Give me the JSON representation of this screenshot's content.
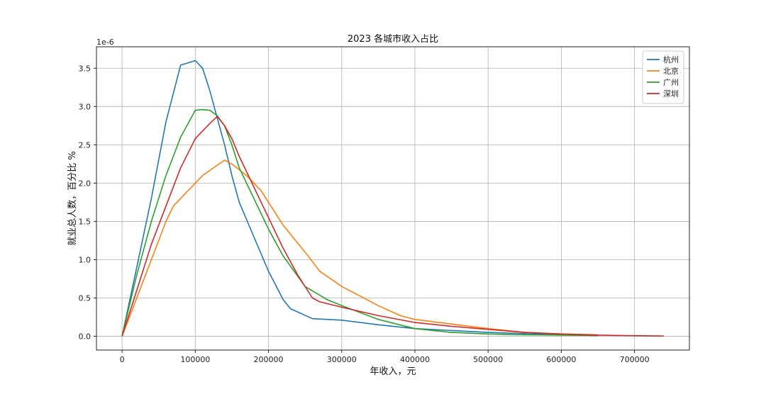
{
  "chart_data": {
    "type": "line",
    "title": "2023 各城市收入占比",
    "xlabel": "年收入，元",
    "ylabel": "就业总人数，百分比 %",
    "y_scale_label": "1e-6",
    "xlim": [
      -35000,
      775000
    ],
    "ylim": [
      -0.18,
      3.78
    ],
    "xticks": [
      0,
      100000,
      200000,
      300000,
      400000,
      500000,
      600000,
      700000
    ],
    "xtick_labels": [
      "0",
      "100000",
      "200000",
      "300000",
      "400000",
      "500000",
      "600000",
      "700000"
    ],
    "yticks": [
      0.0,
      0.5,
      1.0,
      1.5,
      2.0,
      2.5,
      3.0,
      3.5
    ],
    "ytick_labels": [
      "0.0",
      "0.5",
      "1.0",
      "1.5",
      "2.0",
      "2.5",
      "3.0",
      "3.5"
    ],
    "grid": true,
    "legend_position": "top-right",
    "series": [
      {
        "name": "杭州",
        "color": "#1f77b4",
        "x": [
          0,
          20000,
          40000,
          60000,
          80000,
          100000,
          110000,
          120000,
          140000,
          150000,
          160000,
          180000,
          200000,
          220000,
          230000,
          260000,
          300000,
          350000,
          400000,
          500000,
          600000,
          650000
        ],
        "y": [
          0.0,
          0.9,
          1.8,
          2.8,
          3.54,
          3.6,
          3.5,
          3.2,
          2.5,
          2.1,
          1.75,
          1.3,
          0.85,
          0.48,
          0.36,
          0.23,
          0.21,
          0.15,
          0.1,
          0.05,
          0.02,
          0.01
        ]
      },
      {
        "name": "北京",
        "color": "#ff7f0e",
        "x": [
          0,
          20000,
          40000,
          60000,
          70000,
          100000,
          110000,
          140000,
          150000,
          170000,
          190000,
          200000,
          220000,
          250000,
          270000,
          300000,
          350000,
          380000,
          400000,
          450000,
          500000,
          550000,
          600000,
          650000
        ],
        "y": [
          0.0,
          0.5,
          1.0,
          1.5,
          1.7,
          2.0,
          2.1,
          2.3,
          2.25,
          2.1,
          1.9,
          1.75,
          1.45,
          1.1,
          0.85,
          0.65,
          0.4,
          0.27,
          0.22,
          0.16,
          0.1,
          0.05,
          0.03,
          0.02
        ]
      },
      {
        "name": "广州",
        "color": "#2ca02c",
        "x": [
          0,
          20000,
          40000,
          60000,
          80000,
          100000,
          110000,
          120000,
          130000,
          140000,
          150000,
          160000,
          180000,
          200000,
          220000,
          250000,
          280000,
          300000,
          350000,
          400000,
          450000,
          500000,
          550000,
          600000,
          650000
        ],
        "y": [
          0.0,
          0.8,
          1.5,
          2.1,
          2.6,
          2.95,
          2.96,
          2.95,
          2.88,
          2.75,
          2.5,
          2.2,
          1.8,
          1.4,
          1.05,
          0.65,
          0.48,
          0.4,
          0.22,
          0.1,
          0.05,
          0.03,
          0.02,
          0.015,
          0.01
        ]
      },
      {
        "name": "深圳",
        "color": "#d62728",
        "x": [
          0,
          20000,
          40000,
          60000,
          80000,
          100000,
          120000,
          130000,
          140000,
          150000,
          160000,
          180000,
          200000,
          220000,
          240000,
          260000,
          270000,
          300000,
          350000,
          400000,
          450000,
          500000,
          550000,
          600000,
          650000,
          700000,
          740000
        ],
        "y": [
          0.0,
          0.6,
          1.2,
          1.7,
          2.2,
          2.58,
          2.78,
          2.87,
          2.75,
          2.58,
          2.35,
          1.95,
          1.55,
          1.15,
          0.8,
          0.5,
          0.45,
          0.38,
          0.27,
          0.18,
          0.13,
          0.09,
          0.05,
          0.03,
          0.015,
          0.008,
          0.003
        ]
      }
    ]
  }
}
